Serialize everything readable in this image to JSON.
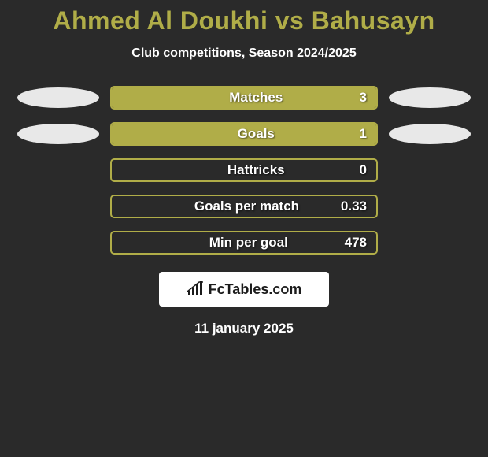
{
  "title": "Ahmed Al Doukhi vs Bahusayn",
  "title_color": "#b0ad48",
  "subtitle": "Club competitions, Season 2024/2025",
  "date": "11 january 2025",
  "ellipse_color": "#e8e8e8",
  "bar_border_color": "#b0ad48",
  "bar_fill_color": "#b0ad48",
  "background_color": "#2a2a2a",
  "rows": [
    {
      "label": "Matches",
      "value": "3",
      "fill_pct": 100,
      "left_ellipse": true,
      "right_ellipse": true
    },
    {
      "label": "Goals",
      "value": "1",
      "fill_pct": 100,
      "left_ellipse": true,
      "right_ellipse": true
    },
    {
      "label": "Hattricks",
      "value": "0",
      "fill_pct": 0,
      "left_ellipse": false,
      "right_ellipse": false
    },
    {
      "label": "Goals per match",
      "value": "0.33",
      "fill_pct": 0,
      "left_ellipse": false,
      "right_ellipse": false
    },
    {
      "label": "Min per goal",
      "value": "478",
      "fill_pct": 0,
      "left_ellipse": false,
      "right_ellipse": false
    }
  ],
  "logo_text": "FcTables.com",
  "logo_icon_color": "#1b1b1b"
}
